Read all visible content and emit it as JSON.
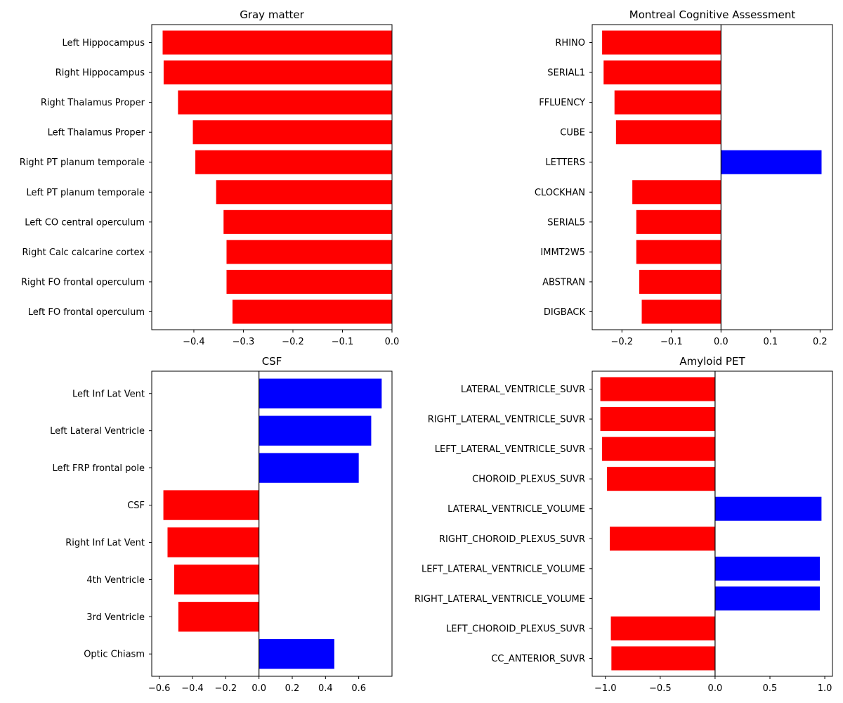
{
  "colors": {
    "negative": "#ff0000",
    "positive": "#0000ff",
    "axis": "#000000",
    "background": "#ffffff"
  },
  "chart_data": [
    {
      "type": "bar",
      "orientation": "horizontal",
      "title": "Gray matter",
      "xlim": [
        -0.485,
        0.0
      ],
      "xticks": [
        -0.4,
        -0.3,
        -0.2,
        -0.1,
        0.0
      ],
      "xtick_labels": [
        "−0.4",
        "−0.3",
        "−0.2",
        "−0.1",
        "0.0"
      ],
      "categories": [
        "Left Hippocampus",
        "Right Hippocampus",
        "Right Thalamus Proper",
        "Left Thalamus Proper",
        "Right PT planum temporale",
        "Left PT planum temporale",
        "Left CO central operculum",
        "Right Calc calcarine cortex",
        "Right FO frontal operculum",
        "Left FO frontal operculum"
      ],
      "values": [
        -0.463,
        -0.461,
        -0.432,
        -0.402,
        -0.397,
        -0.355,
        -0.34,
        -0.334,
        -0.334,
        -0.322
      ]
    },
    {
      "type": "bar",
      "orientation": "horizontal",
      "title": "Montreal Cognitive Assessment",
      "xlim": [
        -0.26,
        0.225
      ],
      "xticks": [
        -0.2,
        -0.1,
        0.0,
        0.1,
        0.2
      ],
      "xtick_labels": [
        "−0.2",
        "−0.1",
        "0.0",
        "0.1",
        "0.2"
      ],
      "categories": [
        "RHINO",
        "SERIAL1",
        "FFLUENCY",
        "CUBE",
        "LETTERS",
        "CLOCKHAN",
        "SERIAL5",
        "IMMT2W5",
        "ABSTRAN",
        "DIGBACK"
      ],
      "values": [
        -0.24,
        -0.237,
        -0.215,
        -0.212,
        0.203,
        -0.179,
        -0.171,
        -0.171,
        -0.165,
        -0.16
      ]
    },
    {
      "type": "bar",
      "orientation": "horizontal",
      "title": "CSF",
      "xlim": [
        -0.645,
        0.8
      ],
      "xticks": [
        -0.6,
        -0.4,
        -0.2,
        0.0,
        0.2,
        0.4,
        0.6
      ],
      "xtick_labels": [
        "−0.6",
        "−0.4",
        "−0.2",
        "0.0",
        "0.2",
        "0.4",
        "0.6"
      ],
      "categories": [
        "Left Inf Lat Vent",
        "Left Lateral Ventricle",
        "Left FRP frontal pole",
        "CSF",
        "Right Inf Lat Vent",
        "4th Ventricle",
        "3rd Ventricle",
        "Optic Chiasm"
      ],
      "values": [
        0.738,
        0.675,
        0.6,
        -0.575,
        -0.55,
        -0.51,
        -0.485,
        0.453
      ]
    },
    {
      "type": "bar",
      "orientation": "horizontal",
      "title": "Amyloid PET",
      "xlim": [
        -1.12,
        1.07
      ],
      "xticks": [
        -1.0,
        -0.5,
        0.0,
        0.5,
        1.0
      ],
      "xtick_labels": [
        "−1.0",
        "−0.5",
        "0.0",
        "0.5",
        "1.0"
      ],
      "categories": [
        "LATERAL_VENTRICLE_SUVR",
        "RIGHT_LATERAL_VENTRICLE_SUVR",
        "LEFT_LATERAL_VENTRICLE_SUVR",
        "CHOROID_PLEXUS_SUVR",
        "LATERAL_VENTRICLE_VOLUME",
        "RIGHT_CHOROID_PLEXUS_SUVR",
        "LEFT_LATERAL_VENTRICLE_VOLUME",
        "RIGHT_LATERAL_VENTRICLE_VOLUME",
        "LEFT_CHOROID_PLEXUS_SUVR",
        "CC_ANTERIOR_SUVR"
      ],
      "values": [
        -1.046,
        -1.046,
        -1.03,
        -0.985,
        0.97,
        -0.96,
        0.955,
        0.955,
        -0.95,
        -0.945
      ]
    }
  ]
}
